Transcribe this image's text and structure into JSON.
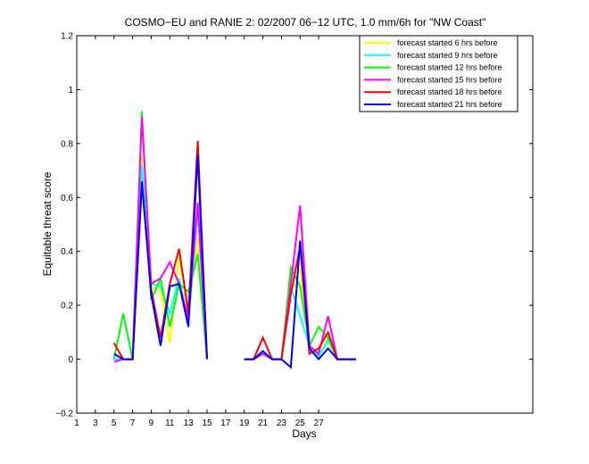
{
  "chart_data": {
    "type": "line",
    "title": "COSMO−EU and RANIE 2: 02/2007 06−12 UTC, 1.0 mm/6h for \"NW Coast\"",
    "xlabel": "Days",
    "ylabel": "Equitable threat score",
    "xlim": [
      1,
      50
    ],
    "ylim": [
      -0.2,
      1.2
    ],
    "xticks": [
      1,
      3,
      5,
      7,
      9,
      11,
      13,
      15,
      17,
      19,
      21,
      23,
      25,
      27
    ],
    "xtick_labels": [
      "1",
      "3",
      "5",
      "7",
      "9",
      "11",
      "13",
      "15",
      "17",
      "19",
      "21",
      "23",
      "25",
      "27"
    ],
    "yticks": [
      -0.2,
      0,
      0.2,
      0.4,
      0.6,
      0.8,
      1,
      1.2
    ],
    "ytick_labels": [
      "−0.2",
      "0",
      "0.2",
      "0.4",
      "0.6",
      "0.8",
      "1",
      "1.2"
    ],
    "legend_position": "top-right",
    "grid": false,
    "series": [
      {
        "name": "forecast started 6 hrs before",
        "color": "#ffff00",
        "segments": [
          [
            [
              5,
              0.0
            ],
            [
              6,
              0.0
            ],
            [
              7,
              0.0
            ],
            [
              8,
              0.75
            ],
            [
              9,
              0.27
            ],
            [
              10,
              0.25
            ],
            [
              11,
              0.06
            ],
            [
              12,
              0.38
            ],
            [
              13,
              0.17
            ],
            [
              14,
              0.45
            ],
            [
              15,
              0.0
            ]
          ],
          [
            [
              19,
              0.0
            ],
            [
              20,
              0.0
            ],
            [
              21,
              0.02
            ],
            [
              22,
              0.0
            ],
            [
              23,
              0.0
            ],
            [
              24,
              0.25
            ],
            [
              25,
              0.33
            ],
            [
              26,
              0.05
            ],
            [
              27,
              0.01
            ],
            [
              28,
              0.08
            ],
            [
              29,
              0.0
            ],
            [
              30,
              0.0
            ],
            [
              31,
              0.0
            ]
          ]
        ]
      },
      {
        "name": "forecast started 9 hrs before",
        "color": "#00ffff",
        "segments": [
          [
            [
              5,
              0.0
            ],
            [
              6,
              0.0
            ],
            [
              7,
              0.0
            ],
            [
              8,
              0.72
            ],
            [
              9,
              0.28
            ],
            [
              10,
              0.27
            ],
            [
              11,
              0.17
            ],
            [
              12,
              0.3
            ],
            [
              13,
              0.14
            ],
            [
              14,
              0.55
            ],
            [
              15,
              0.0
            ]
          ],
          [
            [
              19,
              0.0
            ],
            [
              20,
              0.0
            ],
            [
              21,
              0.02
            ],
            [
              22,
              0.0
            ],
            [
              23,
              0.0
            ],
            [
              24,
              0.27
            ],
            [
              25,
              0.16
            ],
            [
              26,
              0.05
            ],
            [
              27,
              0.01
            ],
            [
              28,
              0.07
            ],
            [
              29,
              0.0
            ],
            [
              30,
              0.0
            ],
            [
              31,
              0.0
            ]
          ]
        ]
      },
      {
        "name": "forecast started 12 hrs before",
        "color": "#00ff00",
        "segments": [
          [
            [
              5,
              0.0
            ],
            [
              6,
              0.17
            ],
            [
              7,
              0.0
            ],
            [
              8,
              0.92
            ],
            [
              9,
              0.22
            ],
            [
              10,
              0.3
            ],
            [
              11,
              0.12
            ],
            [
              12,
              0.28
            ],
            [
              13,
              0.25
            ],
            [
              14,
              0.39
            ],
            [
              15,
              0.0
            ]
          ],
          [
            [
              19,
              0.0
            ],
            [
              20,
              0.0
            ],
            [
              21,
              0.02
            ],
            [
              22,
              0.0
            ],
            [
              23,
              0.0
            ],
            [
              24,
              0.34
            ],
            [
              25,
              0.27
            ],
            [
              26,
              0.05
            ],
            [
              27,
              0.12
            ],
            [
              28,
              0.08
            ],
            [
              29,
              0.0
            ],
            [
              30,
              0.0
            ],
            [
              31,
              0.0
            ]
          ]
        ]
      },
      {
        "name": "forecast started 15 hrs before",
        "color": "#ff00ff",
        "segments": [
          [
            [
              5,
              -0.01
            ],
            [
              6,
              0.0
            ],
            [
              7,
              0.0
            ],
            [
              8,
              0.9
            ],
            [
              9,
              0.28
            ],
            [
              10,
              0.3
            ],
            [
              11,
              0.36
            ],
            [
              12,
              0.28
            ],
            [
              13,
              0.15
            ],
            [
              14,
              0.58
            ],
            [
              15,
              0.0
            ]
          ],
          [
            [
              19,
              0.0
            ],
            [
              20,
              0.0
            ],
            [
              21,
              0.02
            ],
            [
              22,
              0.0
            ],
            [
              23,
              0.0
            ],
            [
              24,
              0.28
            ],
            [
              25,
              0.57
            ],
            [
              26,
              0.05
            ],
            [
              27,
              0.02
            ],
            [
              28,
              0.16
            ],
            [
              29,
              0.0
            ],
            [
              30,
              0.0
            ],
            [
              31,
              0.0
            ]
          ]
        ]
      },
      {
        "name": "forecast started 18 hrs before",
        "color": "#ff0000",
        "segments": [
          [
            [
              5,
              0.06
            ],
            [
              6,
              0.0
            ],
            [
              7,
              0.0
            ],
            [
              8,
              0.65
            ],
            [
              9,
              0.26
            ],
            [
              10,
              0.08
            ],
            [
              11,
              0.28
            ],
            [
              12,
              0.41
            ],
            [
              13,
              0.17
            ],
            [
              14,
              0.81
            ],
            [
              15,
              0.0
            ]
          ],
          [
            [
              19,
              0.0
            ],
            [
              20,
              0.0
            ],
            [
              21,
              0.08
            ],
            [
              22,
              0.0
            ],
            [
              23,
              0.0
            ],
            [
              24,
              0.24
            ],
            [
              25,
              0.42
            ],
            [
              26,
              0.02
            ],
            [
              27,
              0.04
            ],
            [
              28,
              0.1
            ],
            [
              29,
              0.0
            ],
            [
              30,
              0.0
            ],
            [
              31,
              0.0
            ]
          ]
        ]
      },
      {
        "name": "forecast started 21 hrs before",
        "color": "#0000ff",
        "segments": [
          [
            [
              5,
              0.02
            ],
            [
              6,
              0.0
            ],
            [
              7,
              0.0
            ],
            [
              8,
              0.66
            ],
            [
              9,
              0.24
            ],
            [
              10,
              0.05
            ],
            [
              11,
              0.27
            ],
            [
              12,
              0.28
            ],
            [
              13,
              0.12
            ],
            [
              14,
              0.76
            ],
            [
              15,
              0.0
            ]
          ],
          [
            [
              19,
              0.0
            ],
            [
              20,
              0.0
            ],
            [
              21,
              0.03
            ],
            [
              22,
              0.0
            ],
            [
              23,
              0.0
            ],
            [
              24,
              -0.03
            ],
            [
              25,
              0.44
            ],
            [
              26,
              0.04
            ],
            [
              27,
              0.0
            ],
            [
              28,
              0.04
            ],
            [
              29,
              0.0
            ],
            [
              30,
              0.0
            ],
            [
              31,
              0.0
            ]
          ]
        ]
      }
    ]
  }
}
